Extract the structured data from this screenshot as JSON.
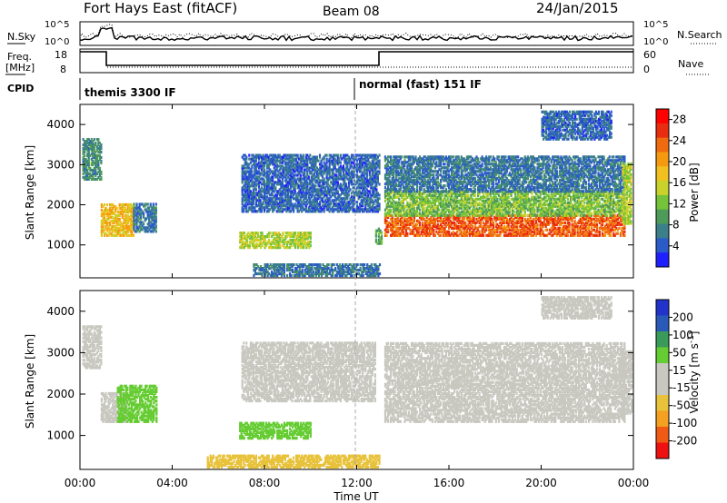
{
  "header": {
    "title": "Fort Hays East (fitACF)",
    "beam": "Beam 08",
    "date": "24/Jan/2015"
  },
  "noise_panel": {
    "left_label": "N.Sky",
    "right_label": "N.Search",
    "left_ticks": [
      "10^5",
      "10^0"
    ],
    "right_ticks": [
      "10^5",
      "10^0"
    ]
  },
  "freq_panel": {
    "left_label_line1": "Freq.",
    "left_label_line2": "[MHz]",
    "right_label": "Nave",
    "left_ticks": [
      "18",
      "8"
    ],
    "right_ticks": [
      "60",
      "0"
    ]
  },
  "cpid_panel": {
    "label": "CPID",
    "modes": [
      {
        "name": "themis 3300 IF",
        "start_hour": 0
      },
      {
        "name": "normal (fast) 151 IF",
        "start_hour": 13
      }
    ]
  },
  "colors": {
    "power": [
      "#2020ff",
      "#2a5bc8",
      "#3b7f8a",
      "#4e9a58",
      "#74c33a",
      "#c8d22a",
      "#f0c020",
      "#f59a10",
      "#f06a10",
      "#e82d10",
      "#ff0000"
    ],
    "velocity": [
      "#ee1111",
      "#f05a14",
      "#f4a020",
      "#e8c23a",
      "#c8c8c0",
      "#c8c8c0",
      "#66cc33",
      "#3a9a5a",
      "#2a5ab8",
      "#2233cc"
    ]
  },
  "chart_data": [
    {
      "type": "heatmap",
      "name": "power",
      "xlabel": "",
      "ylabel": "Slant Range [km]",
      "x_ticks": [
        "00:00",
        "04:00",
        "08:00",
        "12:00",
        "16:00",
        "20:00",
        "00:00"
      ],
      "x_range_hours": [
        0,
        24
      ],
      "y_ticks": [
        1000,
        2000,
        3000,
        4000
      ],
      "ylim": [
        180,
        4500
      ],
      "colorbar_label": "Power [dB]",
      "colorbar_ticks": [
        4,
        8,
        12,
        16,
        20,
        24,
        28
      ],
      "colorbar_range": [
        0,
        30
      ],
      "regions": [
        {
          "hours": [
            0.1,
            0.9
          ],
          "range_km": [
            2600,
            3600
          ],
          "value_db": 8
        },
        {
          "hours": [
            0.9,
            2.3
          ],
          "range_km": [
            1200,
            2000
          ],
          "value_db": 18
        },
        {
          "hours": [
            2.3,
            3.3
          ],
          "range_km": [
            1300,
            2000
          ],
          "value_db": 6
        },
        {
          "hours": [
            6.9,
            10.0
          ],
          "range_km": [
            900,
            1300
          ],
          "value_db": 14
        },
        {
          "hours": [
            7.0,
            13.0
          ],
          "range_km": [
            1800,
            3200
          ],
          "value_db": 5
        },
        {
          "hours": [
            12.8,
            13.1
          ],
          "range_km": [
            1000,
            1400
          ],
          "value_db": 10
        },
        {
          "hours": [
            13.2,
            23.6
          ],
          "range_km": [
            1200,
            1700
          ],
          "value_db": 24
        },
        {
          "hours": [
            13.2,
            23.6
          ],
          "range_km": [
            1700,
            2300
          ],
          "value_db": 12
        },
        {
          "hours": [
            13.2,
            23.6
          ],
          "range_km": [
            2300,
            3200
          ],
          "value_db": 6
        },
        {
          "hours": [
            20.0,
            23.0
          ],
          "range_km": [
            3600,
            4300
          ],
          "value_db": 5
        },
        {
          "hours": [
            23.5,
            23.9
          ],
          "range_km": [
            1500,
            3000
          ],
          "value_db": 14
        },
        {
          "hours": [
            7.5,
            13.0
          ],
          "range_km": [
            200,
            500
          ],
          "value_db": 6
        }
      ]
    },
    {
      "type": "heatmap",
      "name": "velocity",
      "xlabel": "Time UT",
      "ylabel": "Slant Range [km]",
      "x_ticks": [
        "00:00",
        "04:00",
        "08:00",
        "12:00",
        "16:00",
        "20:00",
        "00:00"
      ],
      "x_range_hours": [
        0,
        24
      ],
      "y_ticks": [
        1000,
        2000,
        3000,
        4000
      ],
      "ylim": [
        180,
        4500
      ],
      "colorbar_label": "Velocity [m s^-1]",
      "colorbar_ticks": [
        "-200",
        "-100",
        "-50",
        "-15",
        "15",
        "50",
        "100",
        "200"
      ],
      "regions": [
        {
          "hours": [
            0.1,
            0.9
          ],
          "range_km": [
            2600,
            3600
          ],
          "value_ms": 0
        },
        {
          "hours": [
            0.9,
            2.0
          ],
          "range_km": [
            1300,
            2000
          ],
          "value_ms": 0
        },
        {
          "hours": [
            1.6,
            3.3
          ],
          "range_km": [
            1300,
            2200
          ],
          "value_ms": 40
        },
        {
          "hours": [
            6.9,
            10.0
          ],
          "range_km": [
            900,
            1300
          ],
          "value_ms": 40
        },
        {
          "hours": [
            7.0,
            12.8
          ],
          "range_km": [
            1800,
            3200
          ],
          "value_ms": 0
        },
        {
          "hours": [
            13.2,
            23.6
          ],
          "range_km": [
            1300,
            2600
          ],
          "value_ms": 0
        },
        {
          "hours": [
            13.2,
            23.6
          ],
          "range_km": [
            2600,
            3200
          ],
          "value_ms": 0
        },
        {
          "hours": [
            5.5,
            13.0
          ],
          "range_km": [
            200,
            500
          ],
          "value_ms": -40
        },
        {
          "hours": [
            23.4,
            23.9
          ],
          "range_km": [
            1500,
            3000
          ],
          "value_ms": 0
        },
        {
          "hours": [
            20.0,
            23.0
          ],
          "range_km": [
            3800,
            4300
          ],
          "value_ms": 0
        }
      ]
    }
  ]
}
